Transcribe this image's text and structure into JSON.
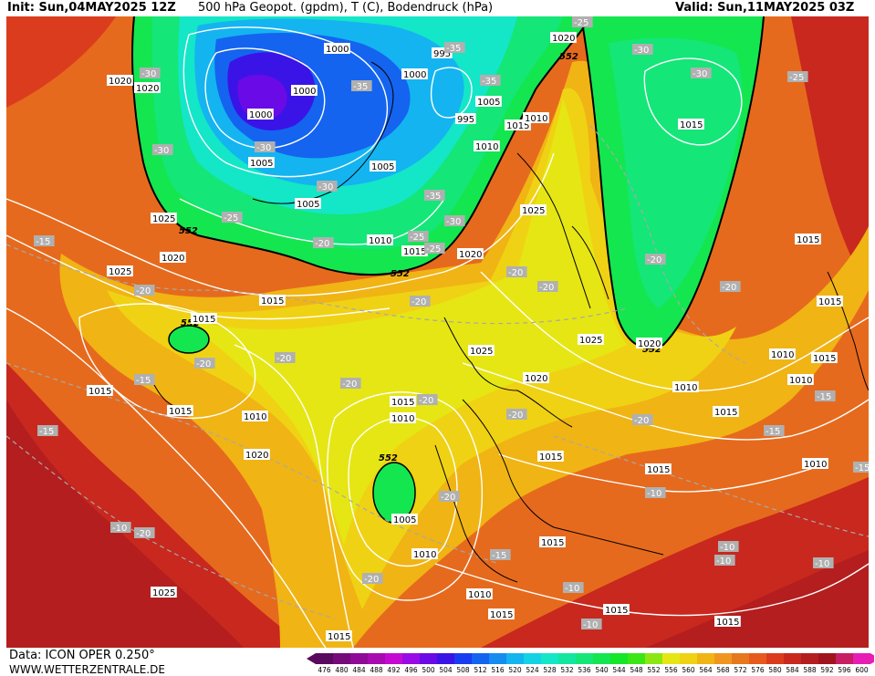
{
  "header": {
    "init_text": "Init: Sun,04MAY2025 12Z",
    "title_text": "500 hPa Geopot. (gpdm), T (C), Bodendruck (hPa)",
    "valid_text": "Valid: Sun,11MAY2025 03Z"
  },
  "footer": {
    "data_source": "Data: ICON OPER 0.250°",
    "website": "WWW.WETTERZENTRALE.DE"
  },
  "legend": {
    "values": [
      "476",
      "480",
      "484",
      "488",
      "492",
      "496",
      "500",
      "504",
      "508",
      "512",
      "516",
      "520",
      "524",
      "528",
      "532",
      "536",
      "540",
      "544",
      "548",
      "552",
      "556",
      "560",
      "564",
      "568",
      "572",
      "576",
      "580",
      "584",
      "588",
      "592",
      "596",
      "600"
    ],
    "colors": [
      "#5a0a5e",
      "#750a7a",
      "#8f0a96",
      "#a80ab2",
      "#c40ad0",
      "#9a0ae6",
      "#6a0ae6",
      "#3a14e6",
      "#1a3cf0",
      "#1464f0",
      "#148cf0",
      "#14b4f0",
      "#14d2e6",
      "#14e6c8",
      "#14e6a0",
      "#14e678",
      "#14e650",
      "#14e628",
      "#3ce614",
      "#8ce614",
      "#e6e614",
      "#f0d214",
      "#f0b414",
      "#f0961e",
      "#e6781e",
      "#e65a1e",
      "#dc3c1e",
      "#c8281e",
      "#b41e1e",
      "#a0141e",
      "#c81e64",
      "#e61eb4"
    ]
  },
  "map": {
    "geopot_labels": [
      "552",
      "552",
      "552",
      "552",
      "552",
      "552"
    ],
    "pressure_labels": [
      "1000",
      "1000",
      "1000",
      "1000",
      "995",
      "995",
      "1020",
      "1020",
      "1020",
      "1020",
      "1005",
      "1005",
      "1005",
      "1005",
      "1010",
      "1010",
      "1015",
      "1015",
      "1010",
      "1025",
      "1025",
      "1020",
      "1015",
      "1015",
      "1025",
      "1020",
      "1025",
      "1025",
      "1020",
      "1015",
      "1015",
      "1010",
      "1015",
      "1010",
      "1015",
      "1010",
      "1020",
      "1015",
      "1005",
      "1010",
      "1015",
      "1010",
      "1015",
      "1015",
      "1015",
      "1010",
      "1010",
      "1015",
      "1015",
      "1015",
      "1010",
      "1020",
      "1025",
      "1015",
      "1015",
      "1015"
    ],
    "temperature_labels": [
      "-35",
      "-30",
      "-35",
      "-30",
      "-30",
      "-30",
      "-30",
      "-25",
      "-30",
      "-35",
      "-25",
      "-25",
      "-35",
      "-30",
      "-20",
      "-25",
      "-15",
      "-20",
      "-20",
      "-20",
      "-20",
      "-20",
      "-15",
      "-20",
      "-20",
      "-20",
      "-20",
      "-20",
      "-20",
      "-15",
      "-15",
      "-20",
      "-15",
      "-10",
      "-10",
      "-20",
      "-15",
      "-10",
      "-10",
      "-10",
      "-10",
      "-15",
      "-10",
      "-20",
      "-20",
      "-25"
    ]
  }
}
